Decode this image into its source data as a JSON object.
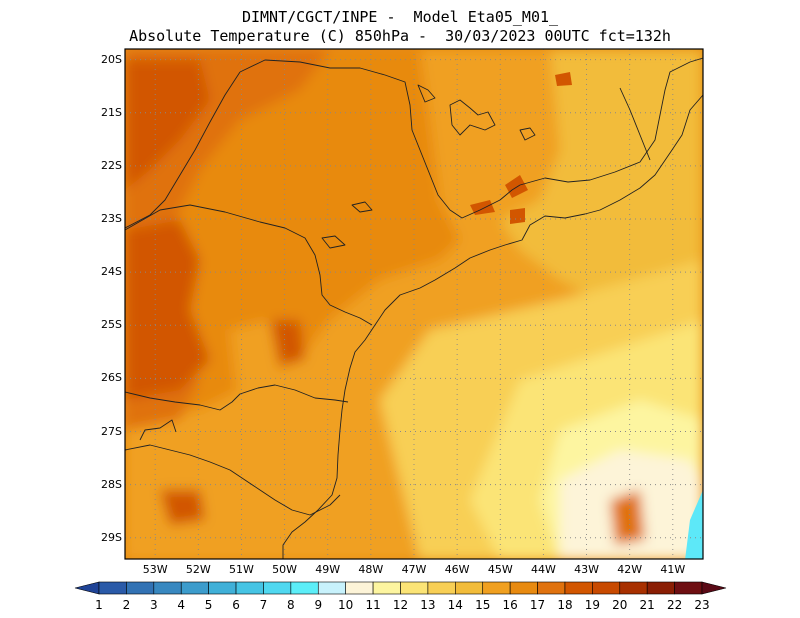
{
  "header": {
    "line1": "DIMNT/CGCT/INPE -  Model Eta05_M01_",
    "line2": "Absolute Temperature (C) 850hPa -  30/03/2023 00UTC fct=132h"
  },
  "map": {
    "extent": {
      "lon": [
        -53.7,
        -40.3
      ],
      "lat": [
        -29.4,
        -19.8
      ]
    },
    "lat_labels": [
      "20S",
      "21S",
      "22S",
      "23S",
      "24S",
      "25S",
      "26S",
      "27S",
      "28S",
      "29S"
    ],
    "lon_labels": [
      "53W",
      "52W",
      "51W",
      "50W",
      "49W",
      "48W",
      "47W",
      "46W",
      "45W",
      "44W",
      "43W",
      "42W",
      "41W"
    ],
    "field_colors": {
      "t19": "#d25600",
      "t18": "#e0720e",
      "t17": "#e88a10",
      "t16": "#f0a020",
      "t15": "#f2bc3a",
      "t14": "#f8cf55",
      "t13": "#fbe476",
      "t12": "#fdf5a0",
      "t11": "#fdf4d8",
      "t10": "#c8f2fc",
      "t9": "#5de8f8",
      "t20": "#c84a00"
    }
  },
  "colorbar": {
    "labels": [
      "1",
      "2",
      "3",
      "4",
      "5",
      "6",
      "7",
      "8",
      "9",
      "10",
      "11",
      "12",
      "13",
      "14",
      "15",
      "16",
      "17",
      "18",
      "19",
      "20",
      "21",
      "22",
      "23"
    ],
    "colors": [
      "#1f4396",
      "#2a5aa8",
      "#3272b4",
      "#3888c0",
      "#3c9ccc",
      "#40b0d8",
      "#46c4e4",
      "#50d8f0",
      "#5ceef8",
      "#c8f2fc",
      "#fdf4d8",
      "#fdf5a0",
      "#fbe476",
      "#f8cf55",
      "#f2bc3a",
      "#f0a020",
      "#e88a10",
      "#e0720e",
      "#d25600",
      "#c84a00",
      "#a83000",
      "#8a1e04",
      "#6e0e12",
      "#5a0a16"
    ]
  }
}
